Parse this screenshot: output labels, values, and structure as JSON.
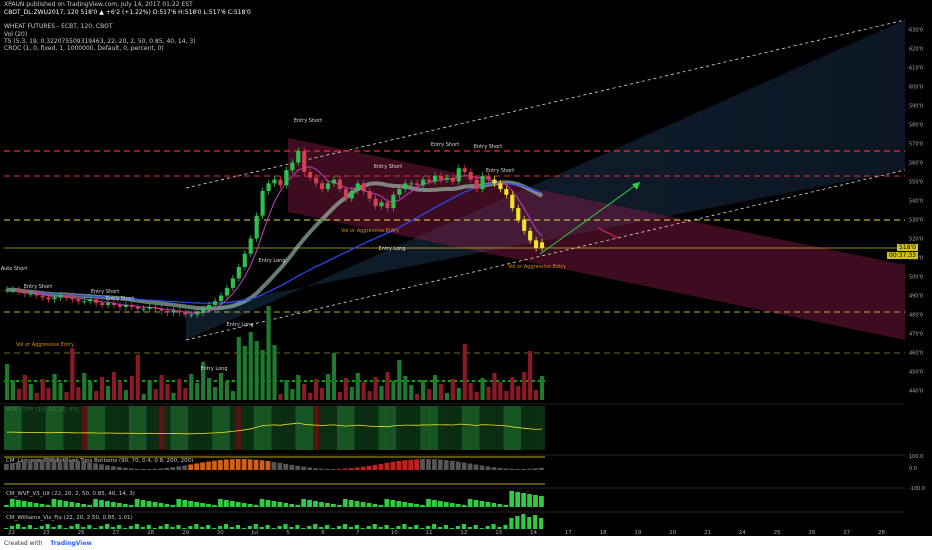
{
  "header": {
    "author_line": "XPAUN published on TradingView.com, July 14, 2017 01:22 EST",
    "symbol_line": "CBOT_DL:ZWU2017, 120  518'0 ▲ +6'2 (+1.22%) O:517'6 H:518'0 L:517'6 C:518'0",
    "title": "WHEAT FUTURES - ECBT, 120, CBOT",
    "ind_vol": "Vol (20)",
    "ind_ts": "TS (5.3, 19, 0.322075509319463, 22, 20, 2, 50, 0.85, 40, 14, 3)",
    "ind_croc": "CROC (1, 0, fixed, 1, 1000000, Default, 0, percent, 0)"
  },
  "labels": {
    "entry_short": "Entry Short",
    "entry_long": "Entry Long",
    "vol_agg": "Vol or Aggressive Entry",
    "auto_short": "Auto Short"
  },
  "panels": {
    "adx": "ADX / DMI (14, 14, 20, 40)",
    "laguerre": "CM_Laguerre PPO PctRank Tops Bottoms (90, 70, 0.4, 0.8, 200, 200)",
    "wvf": "CM_WVF_V3_Ult (22, 20, 2, 50, 0.85, 40, 14, 3)",
    "williams": "CM_Williams_Vix_Fix (22, 20, 2.50, 0.85, 1.01)"
  },
  "price_axis": [
    "630'0",
    "620'0",
    "610'0",
    "600'0",
    "590'0",
    "580'0",
    "570'0",
    "560'0",
    "550'0",
    "540'0",
    "530'0",
    "520'0",
    "510'0",
    "500'0",
    "490'0",
    "480'0",
    "470'0",
    "460'0",
    "450'0",
    "440'0"
  ],
  "last_price": "518'0",
  "countdown": "00:37:33",
  "lag_axis": [
    "100.0",
    "0.0",
    "-100.0"
  ],
  "time_axis": [
    "22",
    "23",
    "26",
    "27",
    "28",
    "29",
    "30",
    "Jul",
    "5",
    "6",
    "7",
    "10",
    "11",
    "12",
    "13",
    "14",
    "17",
    "18",
    "19",
    "20",
    "21",
    "24",
    "25",
    "26",
    "27",
    "28"
  ],
  "footer": {
    "created": "Created with",
    "brand": "TradingView"
  },
  "chart_data": {
    "type": "candlestick",
    "symbol": "CBOT_DL:ZWU2017",
    "interval": "120",
    "ylim": [
      435,
      635
    ],
    "close": [
      493,
      493,
      492,
      491,
      491,
      490,
      489,
      488,
      489,
      490,
      489,
      488,
      487,
      487,
      488,
      486,
      485,
      486,
      485,
      484,
      485,
      484,
      483,
      483,
      484,
      483,
      482,
      481,
      482,
      481,
      480,
      480,
      481,
      483,
      485,
      487,
      490,
      494,
      499,
      505,
      512,
      520,
      532,
      545,
      549,
      551,
      548,
      556,
      560,
      566,
      555,
      552,
      549,
      546,
      549,
      551,
      546,
      541,
      545,
      549,
      545,
      541,
      537,
      539,
      536,
      543,
      546,
      549,
      549,
      548,
      551,
      550,
      553,
      551,
      552,
      550,
      557,
      555,
      551,
      546,
      553,
      551,
      549,
      546,
      543,
      536,
      530,
      524,
      519,
      515,
      518
    ]
  }
}
